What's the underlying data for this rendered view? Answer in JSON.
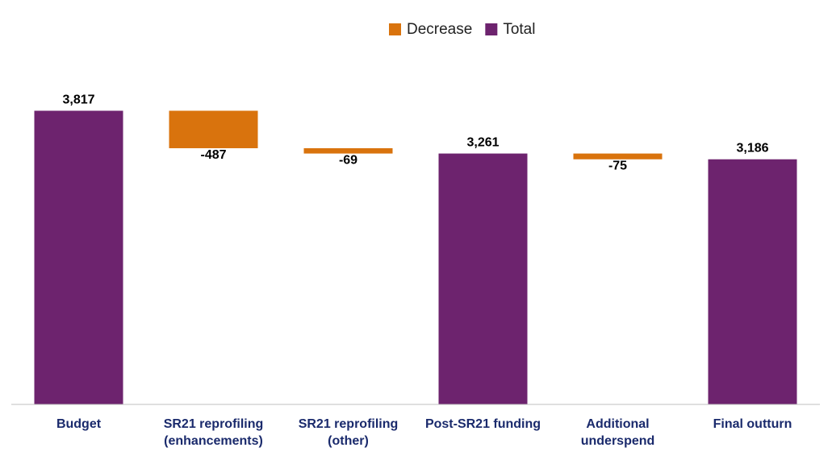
{
  "chart_data": {
    "type": "waterfall",
    "categories": [
      "Budget",
      "SR21 reprofiling (enhancements)",
      "SR21 reprofiling (other)",
      "Post-SR21 funding",
      "Additional underspend",
      "Final outturn"
    ],
    "series": [
      {
        "name": "Decrease",
        "color": "#d9730d",
        "values": [
          null,
          -487,
          -69,
          null,
          -75,
          null
        ]
      },
      {
        "name": "Total",
        "color": "#6d236e",
        "values": [
          3817,
          null,
          null,
          3261,
          null,
          3186
        ],
        "value_labels": [
          "3,817",
          null,
          null,
          "3,261",
          null,
          "3,186"
        ]
      }
    ],
    "ylim": [
      0,
      4000
    ],
    "legend": "top"
  }
}
